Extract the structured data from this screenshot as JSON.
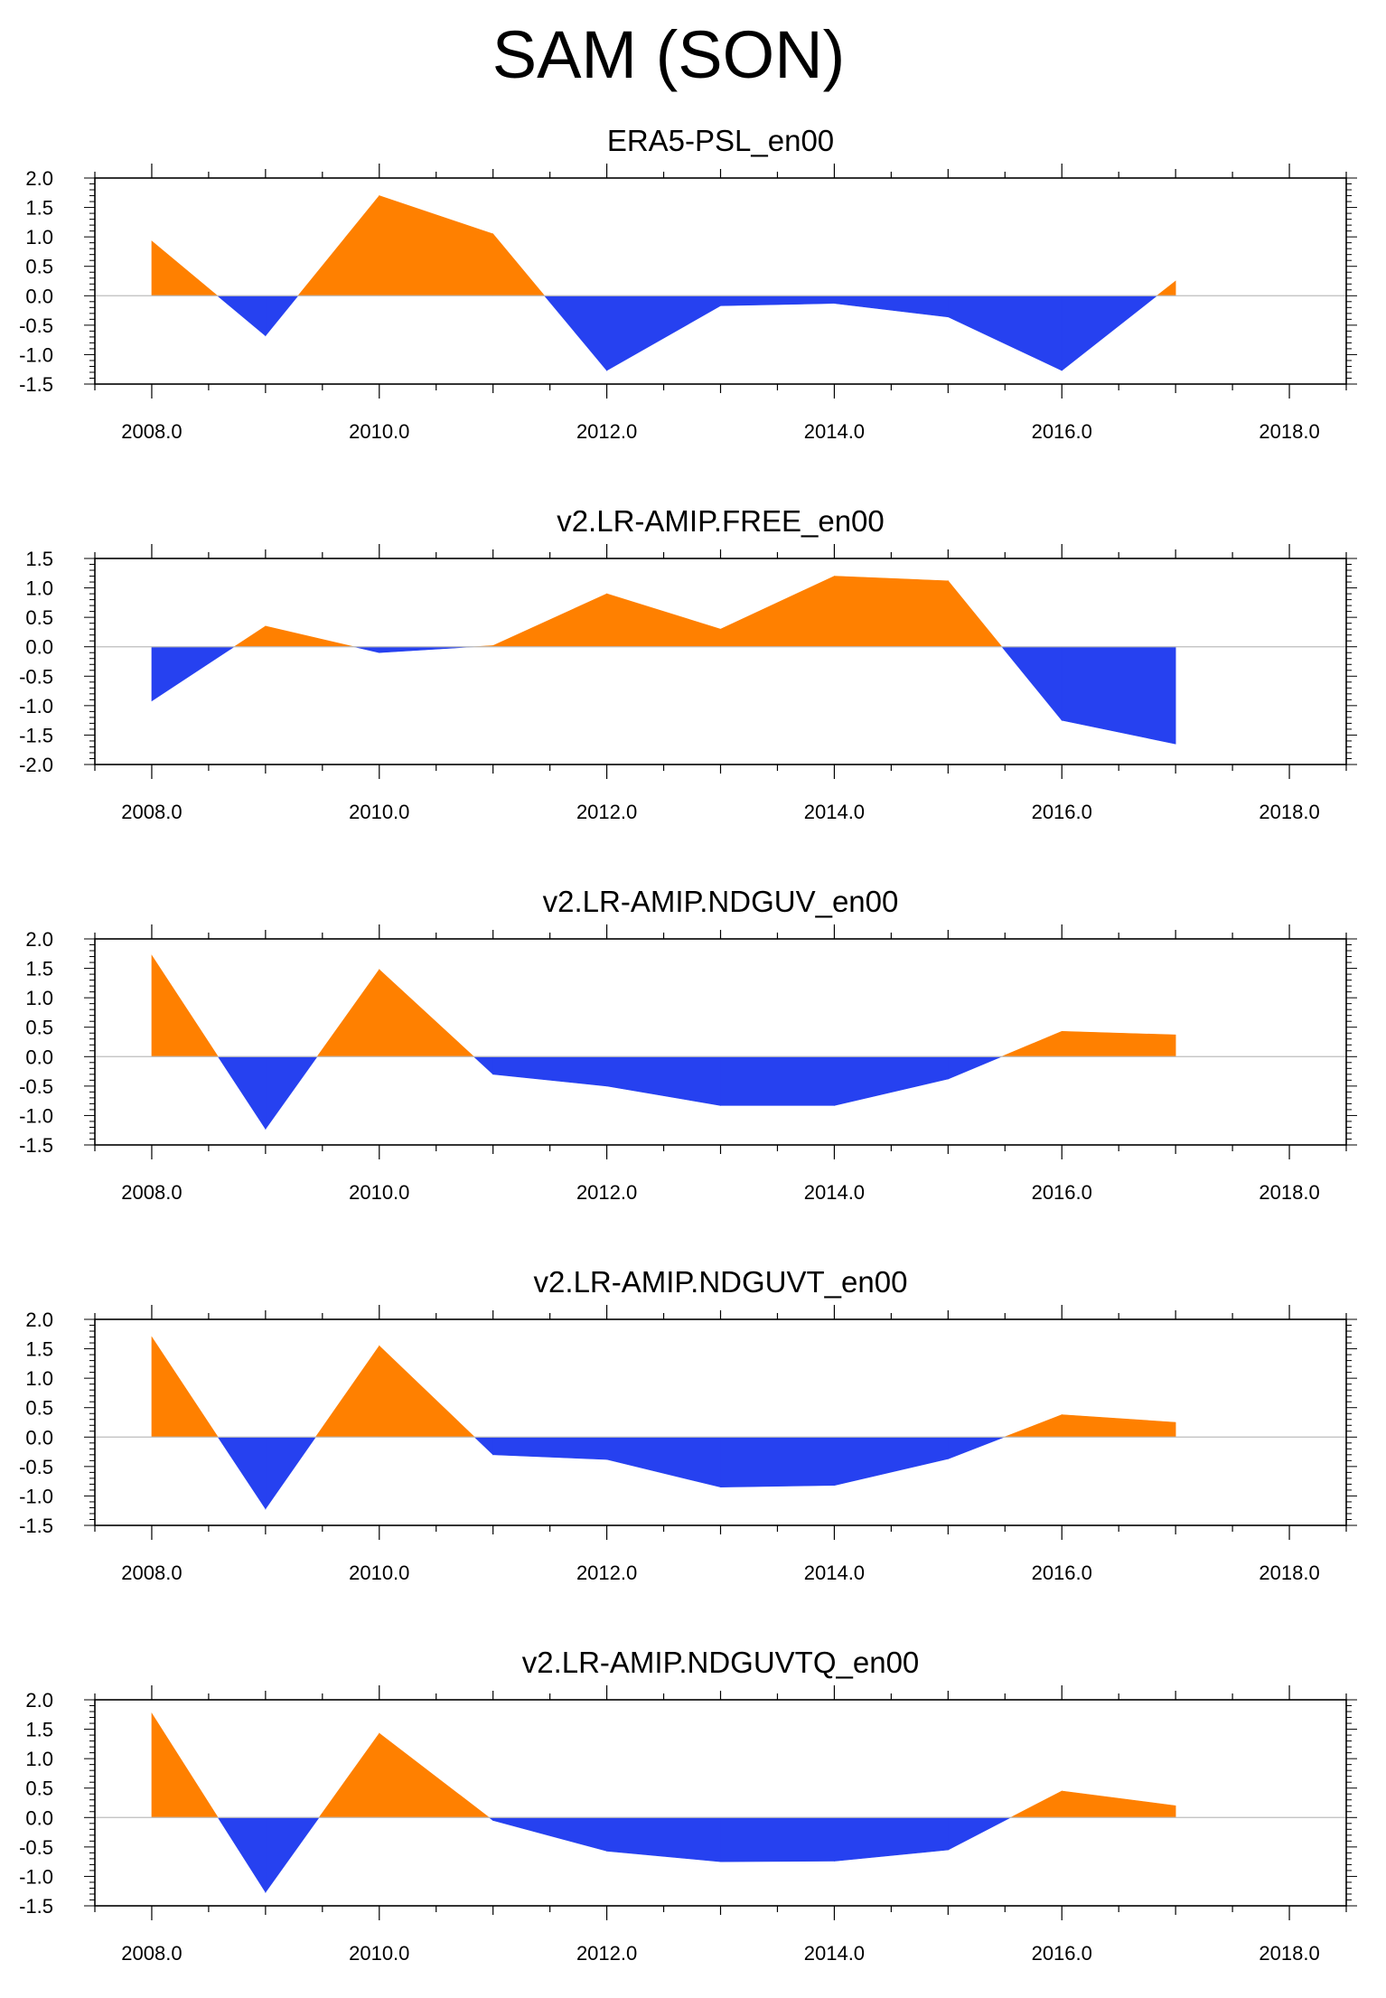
{
  "title": "SAM (SON)",
  "colors": {
    "positive": "#ff8000",
    "negative": "#2641f0",
    "zero_line": "#bdbdbd",
    "axis": "#000000"
  },
  "chart_data": [
    {
      "type": "area",
      "title": "ERA5-PSL_en00",
      "x": [
        2008,
        2009,
        2010,
        2011,
        2012,
        2013,
        2014,
        2015,
        2016,
        2017
      ],
      "values": [
        0.93,
        -0.68,
        1.7,
        1.05,
        -1.27,
        -0.17,
        -0.13,
        -0.36,
        -1.27,
        0.25
      ],
      "xlim": [
        2007.5,
        2018.5
      ],
      "ylim": [
        -1.5,
        2.0
      ],
      "xticks": [
        "2008.0",
        "2010.0",
        "2012.0",
        "2014.0",
        "2016.0",
        "2018.0"
      ],
      "yticks": [
        "2.0",
        "1.5",
        "1.0",
        "0.5",
        "0.0",
        "-0.5",
        "-1.0",
        "-1.5"
      ]
    },
    {
      "type": "area",
      "title": "v2.LR-AMIP.FREE_en00",
      "x": [
        2008,
        2009,
        2010,
        2011,
        2012,
        2013,
        2014,
        2015,
        2016,
        2017
      ],
      "values": [
        -0.92,
        0.35,
        -0.1,
        0.02,
        0.9,
        0.3,
        1.2,
        1.12,
        -1.25,
        -1.65
      ],
      "xlim": [
        2007.5,
        2018.5
      ],
      "ylim": [
        -2.0,
        1.5
      ],
      "xticks": [
        "2008.0",
        "2010.0",
        "2012.0",
        "2014.0",
        "2016.0",
        "2018.0"
      ],
      "yticks": [
        "1.5",
        "1.0",
        "0.5",
        "0.0",
        "-0.5",
        "-1.0",
        "-1.5",
        "-2.0"
      ]
    },
    {
      "type": "area",
      "title": "v2.LR-AMIP.NDGUV_en00",
      "x": [
        2008,
        2009,
        2010,
        2011,
        2012,
        2013,
        2014,
        2015,
        2016,
        2017
      ],
      "values": [
        1.72,
        -1.23,
        1.48,
        -0.3,
        -0.5,
        -0.83,
        -0.83,
        -0.38,
        0.43,
        0.37
      ],
      "xlim": [
        2007.5,
        2018.5
      ],
      "ylim": [
        -1.5,
        2.0
      ],
      "xticks": [
        "2008.0",
        "2010.0",
        "2012.0",
        "2014.0",
        "2016.0",
        "2018.0"
      ],
      "yticks": [
        "2.0",
        "1.5",
        "1.0",
        "0.5",
        "0.0",
        "-0.5",
        "-1.0",
        "-1.5"
      ]
    },
    {
      "type": "area",
      "title": "v2.LR-AMIP.NDGUVT_en00",
      "x": [
        2008,
        2009,
        2010,
        2011,
        2012,
        2013,
        2014,
        2015,
        2016,
        2017
      ],
      "values": [
        1.7,
        -1.22,
        1.55,
        -0.3,
        -0.38,
        -0.85,
        -0.82,
        -0.37,
        0.38,
        0.25
      ],
      "xlim": [
        2007.5,
        2018.5
      ],
      "ylim": [
        -1.5,
        2.0
      ],
      "xticks": [
        "2008.0",
        "2010.0",
        "2012.0",
        "2014.0",
        "2016.0",
        "2018.0"
      ],
      "yticks": [
        "2.0",
        "1.5",
        "1.0",
        "0.5",
        "0.0",
        "-0.5",
        "-1.0",
        "-1.5"
      ]
    },
    {
      "type": "area",
      "title": "v2.LR-AMIP.NDGUVTQ_en00",
      "x": [
        2008,
        2009,
        2010,
        2011,
        2012,
        2013,
        2014,
        2015,
        2016,
        2017
      ],
      "values": [
        1.77,
        -1.27,
        1.43,
        -0.05,
        -0.57,
        -0.75,
        -0.74,
        -0.55,
        0.45,
        0.2
      ],
      "xlim": [
        2007.5,
        2018.5
      ],
      "ylim": [
        -1.5,
        2.0
      ],
      "xticks": [
        "2008.0",
        "2010.0",
        "2012.0",
        "2014.0",
        "2016.0",
        "2018.0"
      ],
      "yticks": [
        "2.0",
        "1.5",
        "1.0",
        "0.5",
        "0.0",
        "-0.5",
        "-1.0",
        "-1.5"
      ]
    }
  ]
}
